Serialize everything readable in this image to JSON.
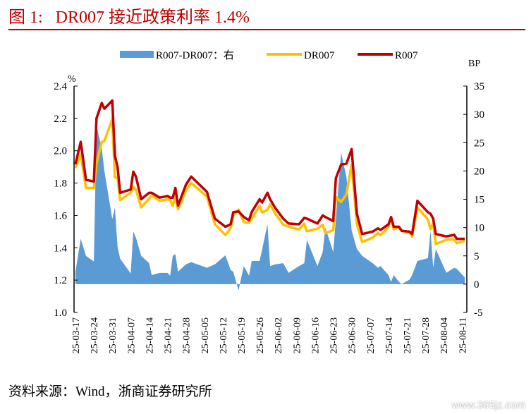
{
  "title": "图 1:   DR007 接近政策利率 1.4%",
  "source": "资料来源：Wind，浙商证券研究所",
  "watermark": "www.365jz.com",
  "colors": {
    "spread": "#5b9bd5",
    "dr007": "#ffc000",
    "r007": "#c00000"
  },
  "chart_data": {
    "type": "line",
    "title": "DR007 接近政策利率 1.4%",
    "x_unit": "days since 25-03-17",
    "left_axis": {
      "label": "%",
      "ylim": [
        1.0,
        2.4
      ],
      "ticks": [
        "1.0",
        "1.2",
        "1.4",
        "1.6",
        "1.8",
        "2.0",
        "2.2",
        "2.4"
      ]
    },
    "right_axis": {
      "label": "BP",
      "ylim": [
        -5,
        35
      ],
      "ticks": [
        "-5",
        "0",
        "5",
        "10",
        "15",
        "20",
        "25",
        "30",
        "35"
      ]
    },
    "x_ticks": [
      "25-03-17",
      "25-03-24",
      "25-03-31",
      "25-04-07",
      "25-04-14",
      "25-04-21",
      "25-04-28",
      "25-05-05",
      "25-05-12",
      "25-05-19",
      "25-05-26",
      "25-06-02",
      "25-06-09",
      "25-06-16",
      "25-06-23",
      "25-06-30",
      "25-07-07",
      "25-07-14",
      "25-07-21",
      "25-07-28",
      "25-08-04",
      "25-08-11"
    ],
    "legend": {
      "placement": "top",
      "items": [
        "R007-DR007：右",
        "DR007",
        "R007"
      ]
    },
    "x": [
      0,
      2,
      4,
      7,
      8,
      10,
      11,
      14,
      15,
      16,
      17,
      21,
      22,
      23,
      25,
      28,
      29,
      32,
      35,
      36,
      37,
      38,
      39,
      42,
      44,
      50,
      53,
      57,
      59,
      60,
      62,
      64,
      66,
      67,
      70,
      71,
      73,
      74,
      76,
      79,
      81,
      85,
      87,
      88,
      92,
      94,
      95,
      98,
      99,
      101,
      103,
      105,
      107,
      109,
      113,
      115,
      116,
      119,
      120,
      121,
      123,
      124,
      127,
      128,
      130,
      134,
      135,
      136,
      137,
      141,
      144,
      145,
      148
    ],
    "series": [
      {
        "name": "R007-DR007：右",
        "axis": "right",
        "kind": "area",
        "values": [
          2.2,
          8,
          5,
          4,
          28,
          24,
          20,
          11.5,
          13.5,
          6.6,
          4.5,
          1.9,
          9.3,
          8.2,
          5,
          3.7,
          1.6,
          2,
          2,
          1.5,
          5,
          5.3,
          2.2,
          3.5,
          3.9,
          2.9,
          3.5,
          5.1,
          2.5,
          2.2,
          -1.1,
          3.2,
          1.5,
          4.1,
          4.1,
          6.2,
          10.6,
          3.2,
          3.5,
          3.7,
          2,
          3.2,
          3.7,
          7.8,
          3.2,
          5.7,
          10,
          5.7,
          11.6,
          23.2,
          19,
          9.5,
          6.2,
          5,
          3.7,
          2.9,
          3.2,
          1.6,
          0.4,
          1.6,
          0.4,
          0,
          0.8,
          1.6,
          4.1,
          4.6,
          9.5,
          2.9,
          6.2,
          2,
          2.9,
          2.7,
          1.2
        ]
      },
      {
        "name": "DR007",
        "axis": "left",
        "kind": "line",
        "values": [
          1.894,
          1.975,
          1.77,
          1.77,
          1.92,
          2.055,
          2.06,
          2.195,
          1.835,
          1.834,
          1.695,
          1.741,
          1.777,
          1.758,
          1.65,
          1.703,
          1.724,
          1.69,
          1.7,
          1.695,
          1.66,
          1.717,
          1.638,
          1.755,
          1.8,
          1.716,
          1.545,
          1.479,
          1.52,
          1.598,
          1.636,
          1.558,
          1.555,
          1.579,
          1.659,
          1.618,
          1.634,
          1.668,
          1.61,
          1.543,
          1.53,
          1.513,
          1.548,
          1.502,
          1.518,
          1.543,
          1.49,
          1.508,
          1.714,
          1.683,
          1.73,
          1.915,
          1.548,
          1.435,
          1.463,
          1.491,
          1.478,
          1.529,
          1.586,
          1.514,
          1.526,
          1.505,
          1.492,
          1.469,
          1.649,
          1.574,
          1.515,
          1.551,
          1.423,
          1.45,
          1.451,
          1.428,
          1.443
        ]
      },
      {
        "name": "R007",
        "axis": "left",
        "kind": "line",
        "values": [
          1.916,
          2.055,
          1.82,
          1.81,
          2.2,
          2.295,
          2.26,
          2.31,
          1.97,
          1.9,
          1.74,
          1.76,
          1.87,
          1.84,
          1.7,
          1.74,
          1.74,
          1.71,
          1.72,
          1.71,
          1.71,
          1.77,
          1.66,
          1.79,
          1.84,
          1.745,
          1.58,
          1.53,
          1.545,
          1.62,
          1.625,
          1.59,
          1.57,
          1.62,
          1.7,
          1.68,
          1.74,
          1.7,
          1.645,
          1.58,
          1.55,
          1.545,
          1.585,
          1.58,
          1.55,
          1.6,
          1.59,
          1.565,
          1.83,
          1.915,
          1.92,
          2.01,
          1.61,
          1.485,
          1.5,
          1.52,
          1.51,
          1.545,
          1.59,
          1.53,
          1.53,
          1.505,
          1.5,
          1.485,
          1.69,
          1.62,
          1.61,
          1.58,
          1.485,
          1.47,
          1.48,
          1.455,
          1.455
        ]
      }
    ]
  }
}
